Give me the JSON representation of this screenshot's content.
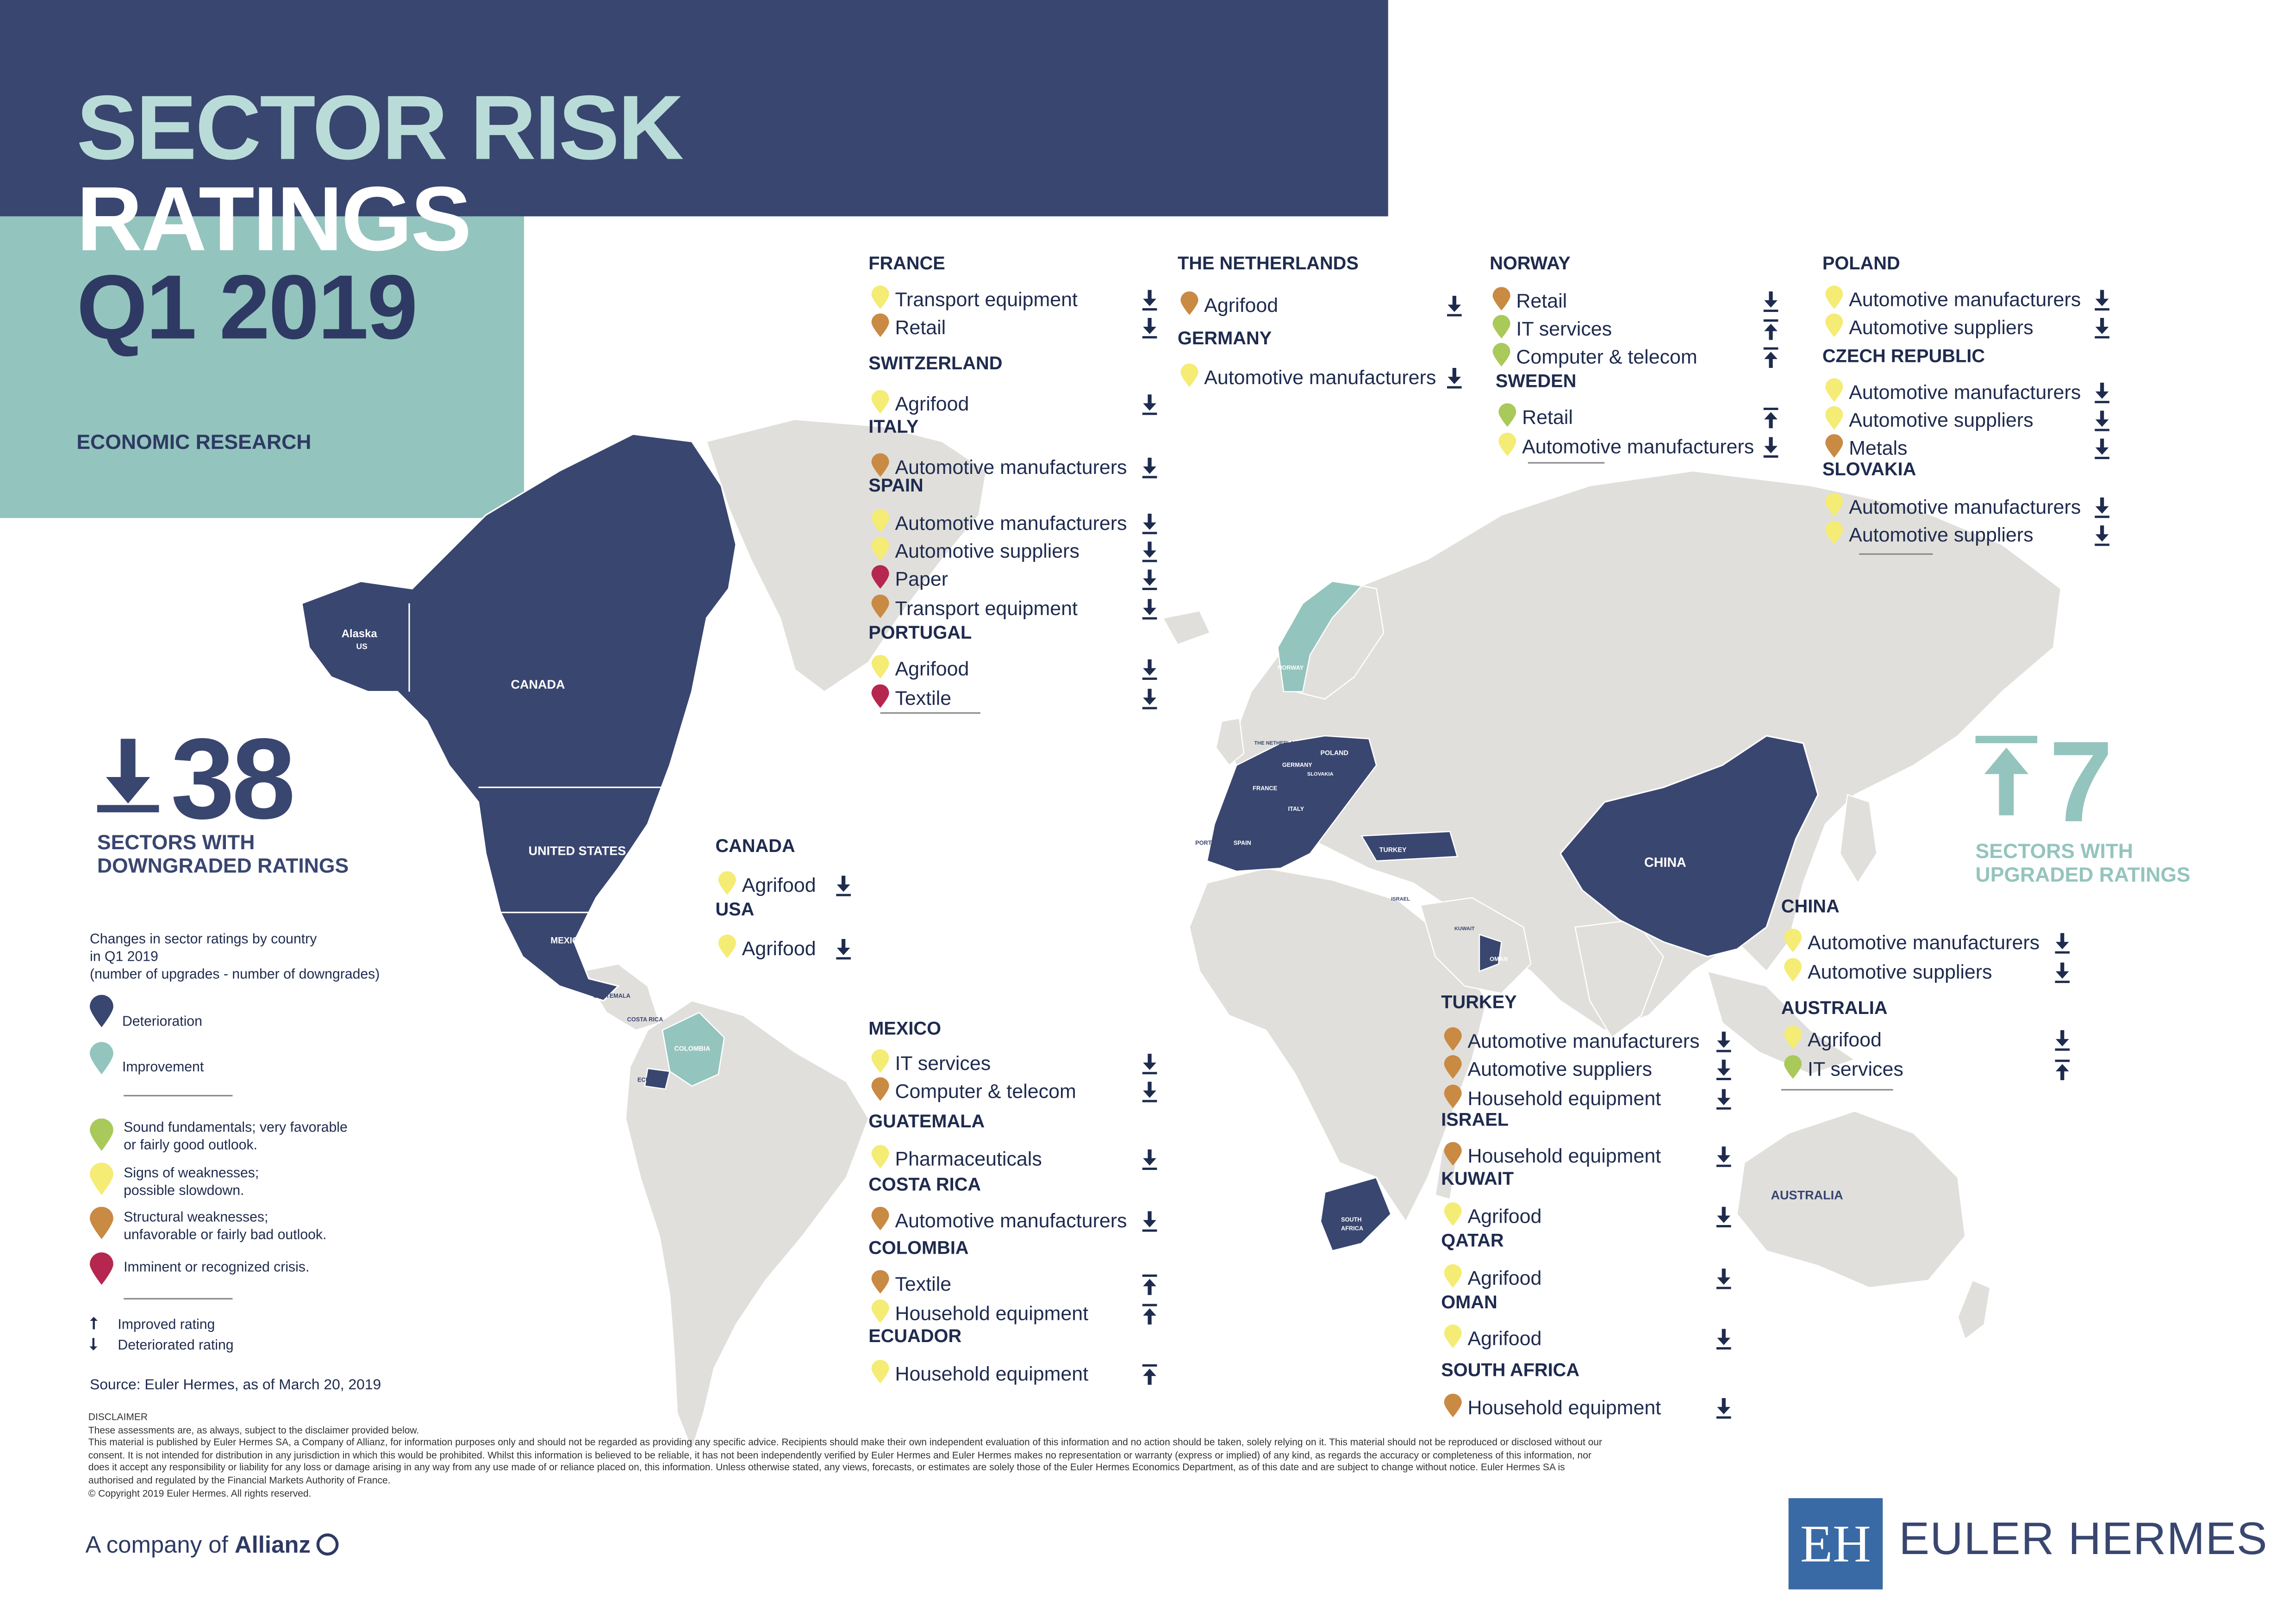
{
  "header": {
    "title_line1": "SECTOR RISK",
    "title_line2": "RATINGS",
    "title_line3": "Q1 2019",
    "subtitle": "ECONOMIC RESEARCH"
  },
  "colors": {
    "navy": "#394670",
    "teal": "#94c4be",
    "land": "#e0dfdb",
    "green": "#a9c95a",
    "yellow": "#f4ec74",
    "orange": "#c98a43",
    "red": "#b5274e"
  },
  "downgraded": {
    "count": "38",
    "caption_line1": "SECTORS WITH",
    "caption_line2": "DOWNGRADED RATINGS"
  },
  "upgraded": {
    "count": "7",
    "caption_line1": "SECTORS WITH",
    "caption_line2": "UPGRADED RATINGS"
  },
  "map_labels": {
    "alaska": "Alaska",
    "us_short": "US",
    "canada": "CANADA",
    "united_states": "UNITED STATES",
    "mexico": "MEXICO",
    "guatemala": "GUATEMALA",
    "costa_rica": "COSTA RICA",
    "colombia": "COLOMBIA",
    "ecuador": "ECUADOR",
    "china": "CHINA",
    "australia": "AUSTRALIA",
    "south_africa_1": "SOUTH",
    "south_africa_2": "AFRICA",
    "oman": "OMAN",
    "turkey": "TURKEY",
    "norway": "NORWAY",
    "poland": "POLAND",
    "germany": "GERMANY",
    "france": "FRANCE",
    "spain": "SPAIN",
    "portugal": "PORTUGAL",
    "italy": "ITALY",
    "netherlands": "THE NETHERLANDS",
    "slovakia": "SLOVAKIA",
    "kuwait": "KUWAIT",
    "israel": "ISRAEL"
  },
  "legend": {
    "intro_line1": "Changes in sector ratings by country",
    "intro_line2": "in Q1 2019",
    "intro_line3": "(number of upgrades - number of downgrades)",
    "deterioration": "Deterioration",
    "improvement": "Improvement",
    "green_line1": "Sound fundamentals; very favorable",
    "green_line2": "or fairly good outlook.",
    "yellow_line1": "Signs of weaknesses;",
    "yellow_line2": "possible slowdown.",
    "orange_line1": "Structural weaknesses;",
    "orange_line2": "unfavorable or fairly bad outlook.",
    "red_line1": "Imminent or recognized crisis.",
    "improved": "Improved rating",
    "deteriorated": "Deteriorated rating",
    "source": "Source: Euler Hermes, as of March 20, 2019"
  },
  "rating_groups": [
    {
      "country": "FRANCE",
      "sectors": [
        {
          "name": "Transport equipment",
          "risk": "yellow",
          "change": "down"
        },
        {
          "name": "Retail",
          "risk": "orange",
          "change": "down"
        }
      ]
    },
    {
      "country": "SWITZERLAND",
      "sectors": [
        {
          "name": "Agrifood",
          "risk": "yellow",
          "change": "down"
        }
      ]
    },
    {
      "country": "ITALY",
      "sectors": [
        {
          "name": "Automotive manufacturers",
          "risk": "orange",
          "change": "down"
        }
      ]
    },
    {
      "country": "SPAIN",
      "sectors": [
        {
          "name": "Automotive manufacturers",
          "risk": "yellow",
          "change": "down"
        },
        {
          "name": "Automotive suppliers",
          "risk": "yellow",
          "change": "down"
        },
        {
          "name": "Paper",
          "risk": "red",
          "change": "down"
        },
        {
          "name": "Transport equipment",
          "risk": "orange",
          "change": "down"
        }
      ]
    },
    {
      "country": "PORTUGAL",
      "sectors": [
        {
          "name": "Agrifood",
          "risk": "yellow",
          "change": "down"
        },
        {
          "name": "Textile",
          "risk": "red",
          "change": "down"
        }
      ]
    },
    {
      "country": "THE NETHERLANDS",
      "sectors": [
        {
          "name": "Agrifood",
          "risk": "orange",
          "change": "down"
        }
      ]
    },
    {
      "country": "GERMANY",
      "sectors": [
        {
          "name": "Automotive manufacturers",
          "risk": "yellow",
          "change": "down"
        }
      ]
    },
    {
      "country": "NORWAY",
      "sectors": [
        {
          "name": "Retail",
          "risk": "orange",
          "change": "down"
        },
        {
          "name": "IT services",
          "risk": "green",
          "change": "up"
        },
        {
          "name": "Computer & telecom",
          "risk": "green",
          "change": "up"
        }
      ]
    },
    {
      "country": "SWEDEN",
      "sectors": [
        {
          "name": "Retail",
          "risk": "green",
          "change": "up"
        },
        {
          "name": "Automotive manufacturers",
          "risk": "yellow",
          "change": "down"
        }
      ]
    },
    {
      "country": "POLAND",
      "sectors": [
        {
          "name": "Automotive manufacturers",
          "risk": "yellow",
          "change": "down"
        },
        {
          "name": "Automotive suppliers",
          "risk": "yellow",
          "change": "down"
        }
      ]
    },
    {
      "country": "CZECH REPUBLIC",
      "sectors": [
        {
          "name": "Automotive manufacturers",
          "risk": "yellow",
          "change": "down"
        },
        {
          "name": "Automotive suppliers",
          "risk": "yellow",
          "change": "down"
        },
        {
          "name": "Metals",
          "risk": "orange",
          "change": "down"
        }
      ]
    },
    {
      "country": "SLOVAKIA",
      "sectors": [
        {
          "name": "Automotive manufacturers",
          "risk": "yellow",
          "change": "down"
        },
        {
          "name": "Automotive suppliers",
          "risk": "yellow",
          "change": "down"
        }
      ]
    },
    {
      "country": "CANADA",
      "sectors": [
        {
          "name": "Agrifood",
          "risk": "yellow",
          "change": "down"
        }
      ]
    },
    {
      "country": "USA",
      "sectors": [
        {
          "name": "Agrifood",
          "risk": "yellow",
          "change": "down"
        }
      ]
    },
    {
      "country": "MEXICO",
      "sectors": [
        {
          "name": "IT services",
          "risk": "yellow",
          "change": "down"
        },
        {
          "name": "Computer & telecom",
          "risk": "orange",
          "change": "down"
        }
      ]
    },
    {
      "country": "GUATEMALA",
      "sectors": [
        {
          "name": "Pharmaceuticals",
          "risk": "yellow",
          "change": "down"
        }
      ]
    },
    {
      "country": "COSTA RICA",
      "sectors": [
        {
          "name": "Automotive manufacturers",
          "risk": "orange",
          "change": "down"
        }
      ]
    },
    {
      "country": "COLOMBIA",
      "sectors": [
        {
          "name": "Textile",
          "risk": "orange",
          "change": "up"
        },
        {
          "name": "Household equipment",
          "risk": "yellow",
          "change": "up"
        }
      ]
    },
    {
      "country": "ECUADOR",
      "sectors": [
        {
          "name": "Household equipment",
          "risk": "yellow",
          "change": "up"
        }
      ]
    },
    {
      "country": "TURKEY",
      "sectors": [
        {
          "name": "Automotive manufacturers",
          "risk": "orange",
          "change": "down"
        },
        {
          "name": "Automotive suppliers",
          "risk": "orange",
          "change": "down"
        },
        {
          "name": "Household equipment",
          "risk": "orange",
          "change": "down"
        }
      ]
    },
    {
      "country": "ISRAEL",
      "sectors": [
        {
          "name": "Household equipment",
          "risk": "orange",
          "change": "down"
        }
      ]
    },
    {
      "country": "KUWAIT",
      "sectors": [
        {
          "name": "Agrifood",
          "risk": "yellow",
          "change": "down"
        }
      ]
    },
    {
      "country": "QATAR",
      "sectors": [
        {
          "name": "Agrifood",
          "risk": "yellow",
          "change": "down"
        }
      ]
    },
    {
      "country": "OMAN",
      "sectors": [
        {
          "name": "Agrifood",
          "risk": "yellow",
          "change": "down"
        }
      ]
    },
    {
      "country": "SOUTH AFRICA",
      "sectors": [
        {
          "name": "Household equipment",
          "risk": "orange",
          "change": "down"
        }
      ]
    },
    {
      "country": "CHINA",
      "sectors": [
        {
          "name": "Automotive manufacturers",
          "risk": "yellow",
          "change": "down"
        },
        {
          "name": "Automotive suppliers",
          "risk": "yellow",
          "change": "down"
        }
      ]
    },
    {
      "country": "AUSTRALIA",
      "sectors": [
        {
          "name": "Agrifood",
          "risk": "yellow",
          "change": "down"
        },
        {
          "name": "IT services",
          "risk": "green",
          "change": "up"
        }
      ]
    }
  ],
  "disclaimer": {
    "heading": "DISCLAIMER",
    "line1": "These assessments are, as always, subject to the disclaimer provided below.",
    "body": "This material is published by Euler Hermes SA, a Company of Allianz, for information purposes only and should not be regarded as providing any specific advice. Recipients should make their own independent evaluation of this information and no action should be taken, solely relying on it. This material should not be reproduced or disclosed without our consent. It is not intended for distribution in any jurisdiction in which this would be prohibited. Whilst this information is believed to be reliable, it has not been independently verified by Euler Hermes and Euler Hermes makes no representation or warranty (express or implied) of any kind, as regards the accuracy or completeness of this information, nor does it accept any responsibility or liability for any loss or damage arising in any way from any use made of or reliance placed on, this information. Unless otherwise stated, any views, forecasts, or estimates are solely those of the Euler Hermes Economics Department, as of this date and are subject to change without notice. Euler Hermes SA is authorised and regulated by the Financial Markets Authority of France.",
    "copyright": "© Copyright 2019 Euler Hermes. All rights reserved."
  },
  "footer": {
    "allianz_prefix": "A company of",
    "allianz_name": "Allianz",
    "logo_mark": "EH",
    "brand": "EULER HERMES"
  }
}
